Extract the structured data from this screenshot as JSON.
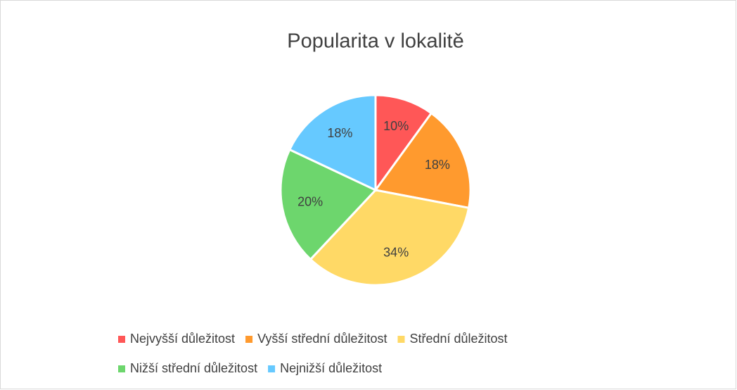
{
  "chart_data": {
    "type": "pie",
    "title": "Popularita v lokalitě",
    "categories": [
      "Nejvyšší důležitost",
      "Vyšší střední důležitost",
      "Střední důležitost",
      "Nižší střední důležitost",
      "Nejnižší důležitost"
    ],
    "values": [
      10,
      18,
      34,
      20,
      18
    ],
    "value_labels": [
      "10%",
      "18%",
      "34%",
      "20%",
      "18%"
    ],
    "colors": [
      "#ff5757",
      "#ff9a2e",
      "#ffd966",
      "#6dd66d",
      "#66c9ff"
    ],
    "legend": "bottom"
  }
}
